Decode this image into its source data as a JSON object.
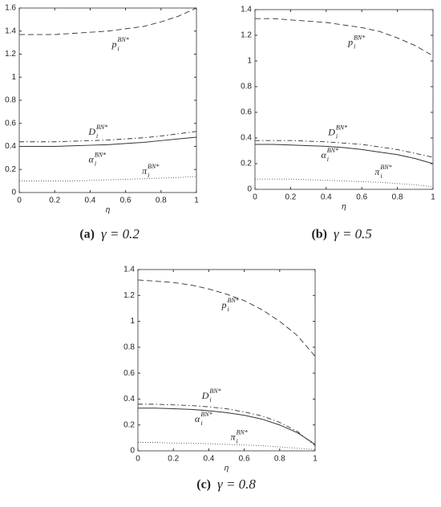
{
  "chart_data": [
    {
      "type": "line",
      "caption_label": "(a)",
      "caption": "γ = 0.2",
      "xlabel": "η",
      "x": [
        0,
        0.1,
        0.2,
        0.3,
        0.4,
        0.5,
        0.6,
        0.7,
        0.8,
        0.9,
        1
      ],
      "xlim": [
        0,
        1
      ],
      "xticks": [
        0,
        0.2,
        0.4,
        0.6,
        0.8,
        1
      ],
      "ylim": [
        0,
        1.6
      ],
      "yticks": [
        0,
        0.2,
        0.4,
        0.6,
        0.8,
        1,
        1.2,
        1.4,
        1.6
      ],
      "series": [
        {
          "name": "p",
          "sub": "i",
          "sup": "BN*",
          "color": "#333",
          "style": "dashed",
          "values": [
            1.37,
            1.37,
            1.37,
            1.38,
            1.39,
            1.4,
            1.42,
            1.44,
            1.48,
            1.53,
            1.6
          ]
        },
        {
          "name": "D",
          "sub": "i",
          "sup": "BN*",
          "color": "#333",
          "style": "dashdot",
          "values": [
            0.44,
            0.44,
            0.44,
            0.445,
            0.45,
            0.455,
            0.465,
            0.475,
            0.49,
            0.51,
            0.53
          ]
        },
        {
          "name": "α",
          "sub": "i",
          "sup": "BN*",
          "color": "#333",
          "style": "solid",
          "values": [
            0.4,
            0.4,
            0.4,
            0.405,
            0.41,
            0.415,
            0.425,
            0.435,
            0.45,
            0.465,
            0.48
          ]
        },
        {
          "name": "π",
          "sub": "i",
          "sup": "BN*",
          "color": "#555",
          "style": "dotted",
          "values": [
            0.1,
            0.1,
            0.1,
            0.1,
            0.105,
            0.11,
            0.115,
            0.12,
            0.125,
            0.13,
            0.14
          ]
        }
      ]
    },
    {
      "type": "line",
      "caption_label": "(b)",
      "caption": "γ = 0.5",
      "xlabel": "η",
      "x": [
        0,
        0.1,
        0.2,
        0.3,
        0.4,
        0.5,
        0.6,
        0.7,
        0.8,
        0.9,
        1
      ],
      "xlim": [
        0,
        1
      ],
      "xticks": [
        0,
        0.2,
        0.4,
        0.6,
        0.8,
        1
      ],
      "ylim": [
        0,
        1.4
      ],
      "yticks": [
        0,
        0.2,
        0.4,
        0.6,
        0.8,
        1,
        1.2,
        1.4
      ],
      "series": [
        {
          "name": "p",
          "sub": "i",
          "sup": "BN*",
          "color": "#333",
          "style": "dashed",
          "values": [
            1.33,
            1.33,
            1.32,
            1.31,
            1.3,
            1.28,
            1.26,
            1.23,
            1.18,
            1.12,
            1.04
          ]
        },
        {
          "name": "D",
          "sub": "i",
          "sup": "BN*",
          "color": "#333",
          "style": "dashdot",
          "values": [
            0.38,
            0.38,
            0.38,
            0.375,
            0.37,
            0.36,
            0.35,
            0.33,
            0.31,
            0.28,
            0.25
          ]
        },
        {
          "name": "α",
          "sub": "i",
          "sup": "BN*",
          "color": "#333",
          "style": "solid",
          "values": [
            0.35,
            0.35,
            0.345,
            0.34,
            0.335,
            0.325,
            0.31,
            0.29,
            0.27,
            0.24,
            0.2
          ]
        },
        {
          "name": "π",
          "sub": "i",
          "sup": "BN*",
          "color": "#555",
          "style": "dotted",
          "values": [
            0.08,
            0.08,
            0.08,
            0.075,
            0.07,
            0.065,
            0.06,
            0.055,
            0.045,
            0.035,
            0.02
          ]
        }
      ]
    },
    {
      "type": "line",
      "caption_label": "(c)",
      "caption": "γ = 0.8",
      "xlabel": "η",
      "x": [
        0,
        0.1,
        0.2,
        0.3,
        0.4,
        0.5,
        0.6,
        0.7,
        0.8,
        0.9,
        1
      ],
      "xlim": [
        0,
        1
      ],
      "xticks": [
        0,
        0.2,
        0.4,
        0.6,
        0.8,
        1
      ],
      "ylim": [
        0,
        1.4
      ],
      "yticks": [
        0,
        0.2,
        0.4,
        0.6,
        0.8,
        1,
        1.2,
        1.4
      ],
      "series": [
        {
          "name": "p",
          "sub": "i",
          "sup": "BN*",
          "color": "#333",
          "style": "dashed",
          "values": [
            1.32,
            1.31,
            1.3,
            1.28,
            1.25,
            1.21,
            1.16,
            1.09,
            1.0,
            0.89,
            0.73
          ]
        },
        {
          "name": "D",
          "sub": "i",
          "sup": "BN*",
          "color": "#333",
          "style": "dashdot",
          "values": [
            0.36,
            0.36,
            0.355,
            0.35,
            0.34,
            0.325,
            0.3,
            0.27,
            0.22,
            0.15,
            0.04
          ]
        },
        {
          "name": "α",
          "sub": "i",
          "sup": "BN*",
          "color": "#333",
          "style": "solid",
          "values": [
            0.33,
            0.33,
            0.325,
            0.32,
            0.31,
            0.295,
            0.275,
            0.245,
            0.2,
            0.14,
            0.05
          ]
        },
        {
          "name": "π",
          "sub": "i",
          "sup": "BN*",
          "color": "#555",
          "style": "dotted",
          "values": [
            0.065,
            0.065,
            0.06,
            0.06,
            0.055,
            0.05,
            0.045,
            0.04,
            0.03,
            0.02,
            0.01
          ]
        }
      ]
    }
  ]
}
